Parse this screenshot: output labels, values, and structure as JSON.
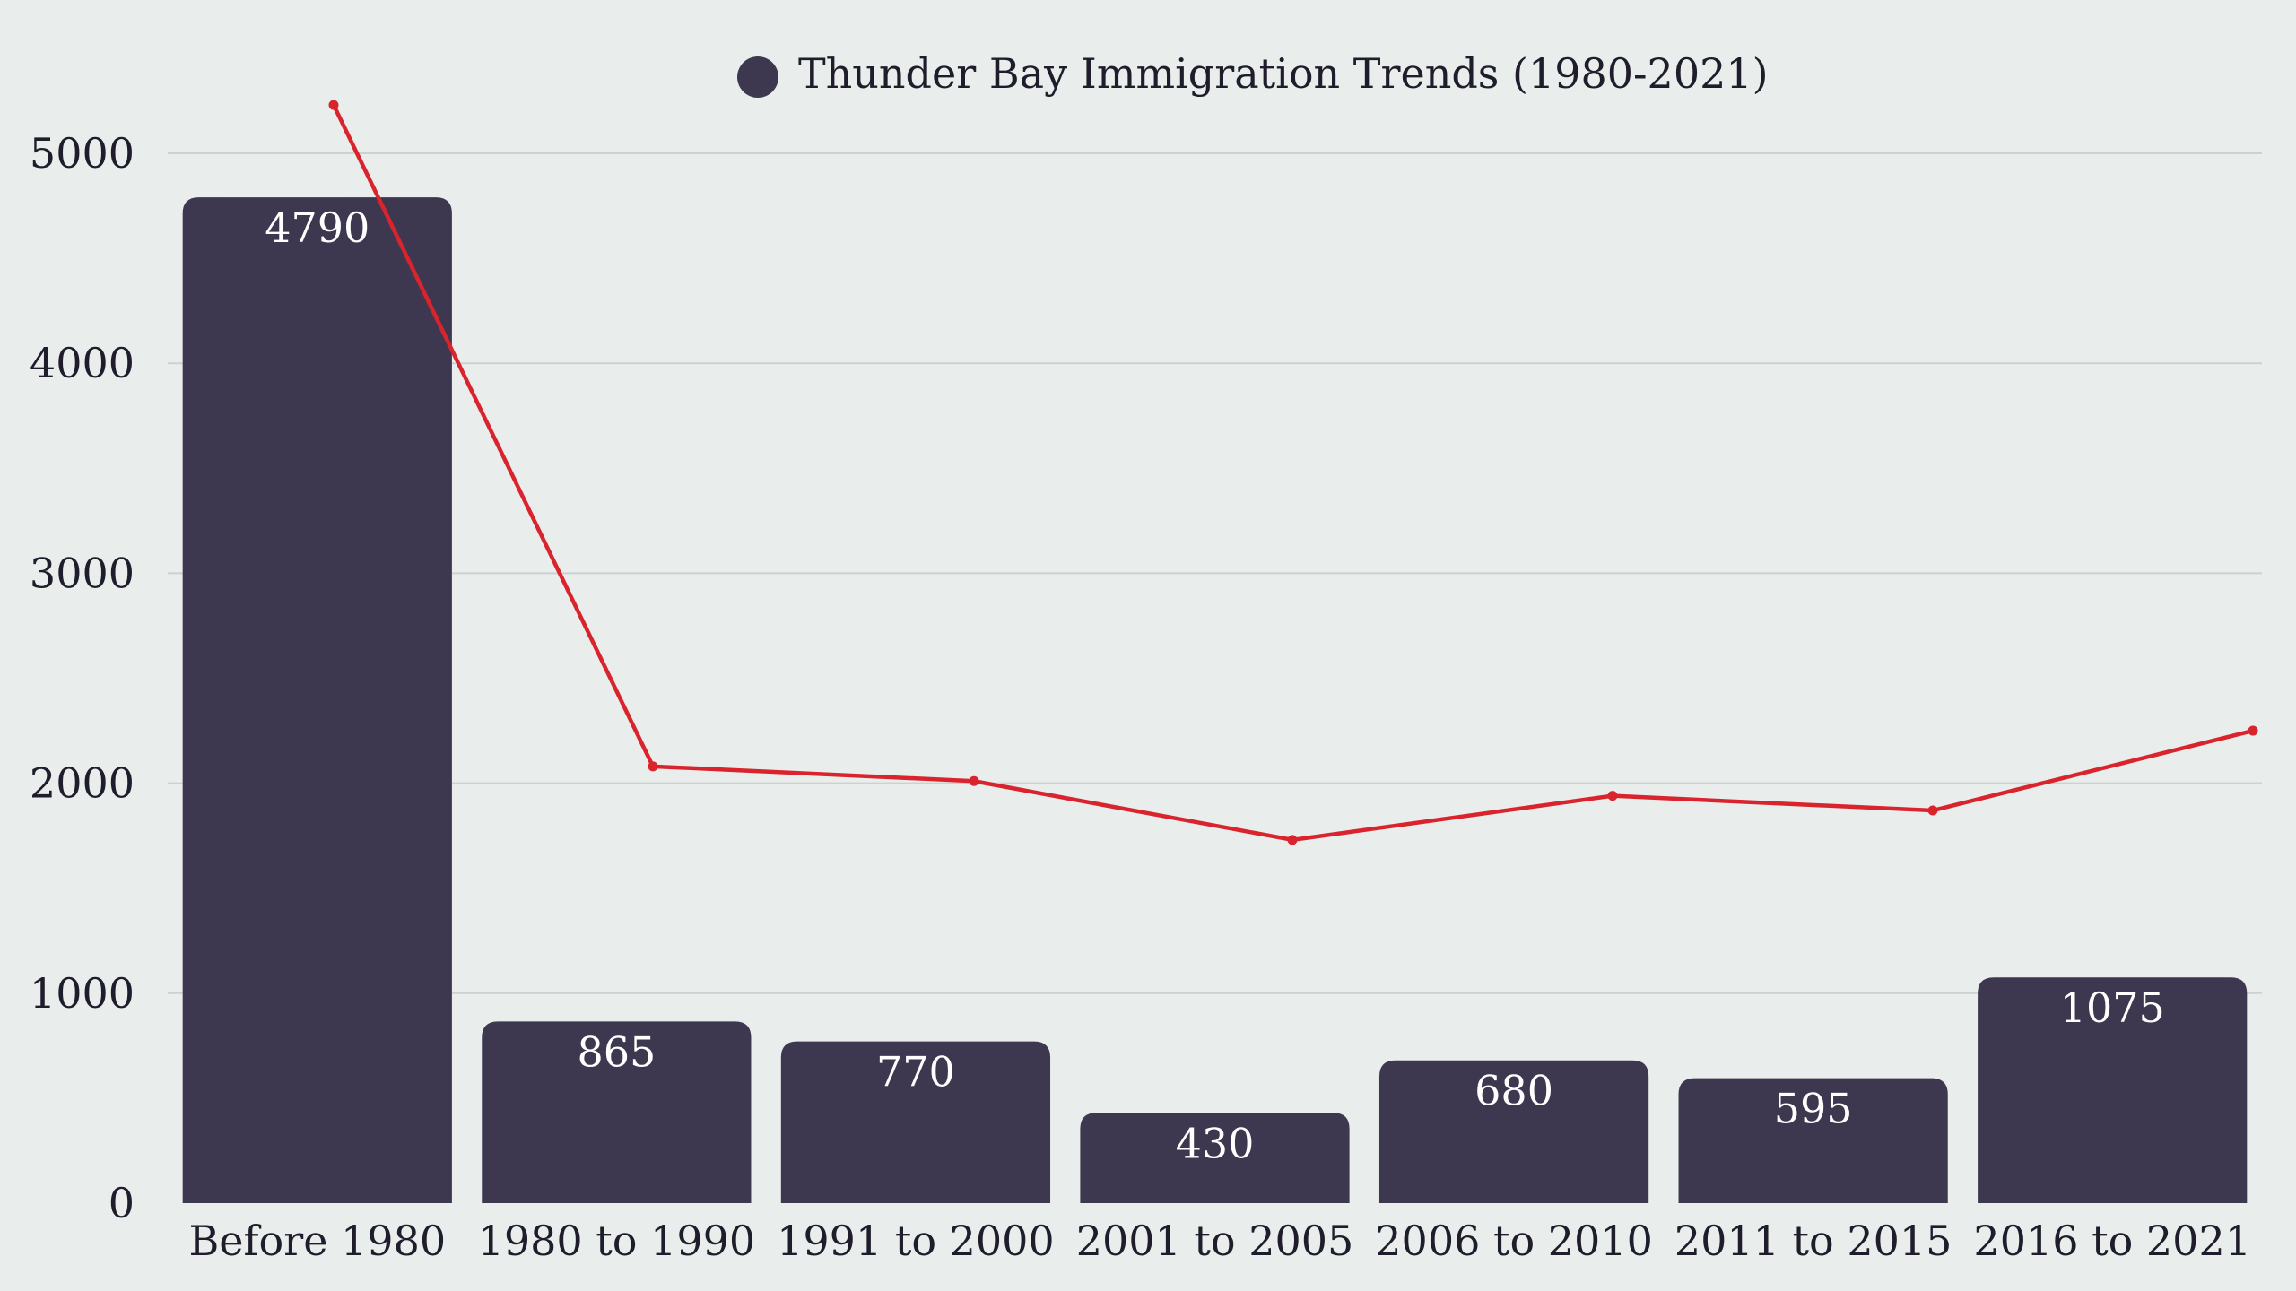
{
  "chart_data": {
    "type": "bar",
    "title": "",
    "legend": [
      {
        "label": "Thunder Bay Immigration Trends (1980-2021)",
        "color": "#3d384f"
      }
    ],
    "categories": [
      "Before 1980",
      "1980 to 1990",
      "1991 to 2000",
      "2001 to 2005",
      "2006 to 2010",
      "2011 to 2015",
      "2016 to 2021"
    ],
    "series": [
      {
        "name": "Thunder Bay Immigration Trends (1980-2021)",
        "type": "bar",
        "color": "#3d384f",
        "values": [
          4790,
          865,
          770,
          430,
          680,
          595,
          1075
        ]
      },
      {
        "type": "line",
        "color": "#d9232d",
        "values": [
          5230,
          2080,
          2010,
          1730,
          1940,
          1870,
          2250
        ]
      }
    ],
    "bar_labels": [
      "4790",
      "865",
      "770",
      "430",
      "680",
      "595",
      "1075"
    ],
    "ylim": [
      0,
      5000
    ],
    "yticks": [
      "0",
      "1000",
      "2000",
      "3000",
      "4000",
      "5000"
    ],
    "ytick_values": [
      0,
      1000,
      2000,
      3000,
      4000,
      5000
    ],
    "grid": true,
    "legend_position": "top-center",
    "xlabel": "",
    "ylabel": ""
  }
}
